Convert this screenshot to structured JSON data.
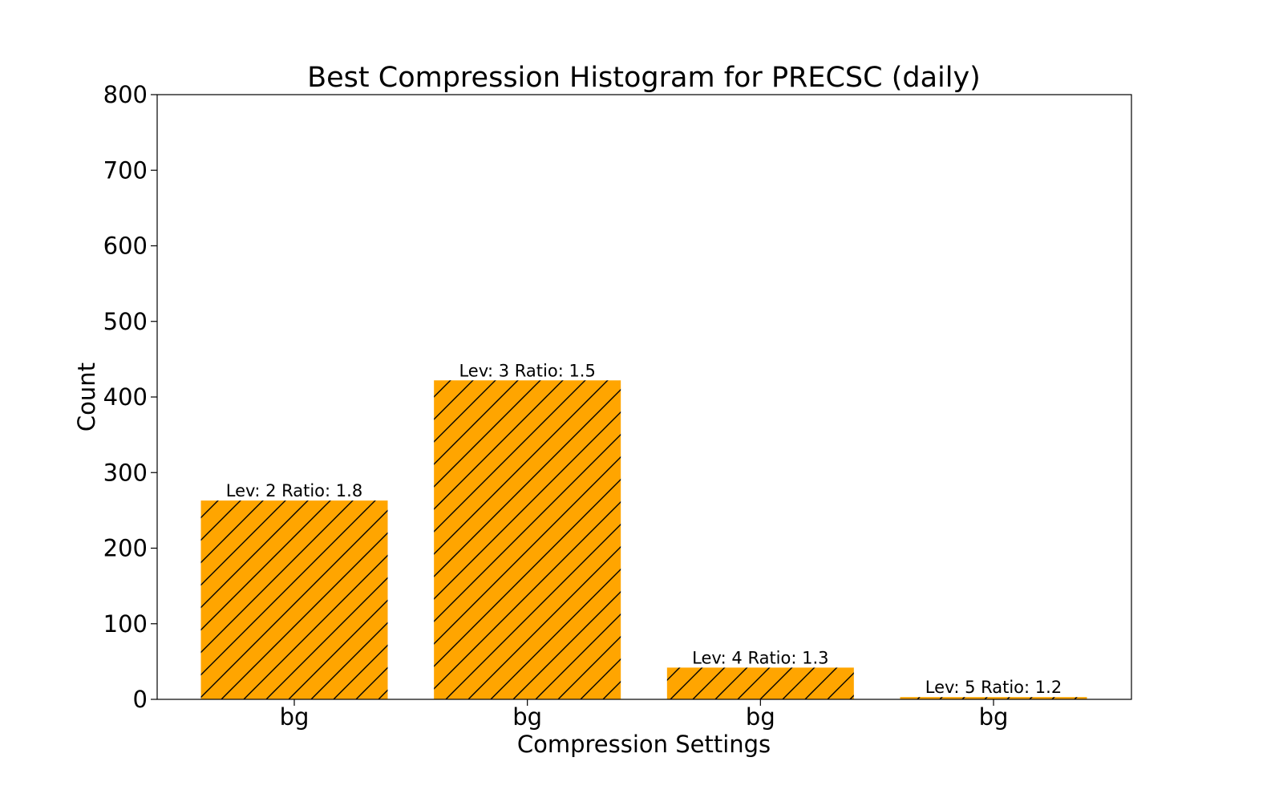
{
  "chart_data": {
    "type": "bar",
    "title": "Best Compression Histogram for PRECSC (daily)",
    "xlabel": "Compression Settings",
    "ylabel": "Count",
    "ylim": [
      0,
      800
    ],
    "yticks": [
      "0",
      "100",
      "200",
      "300",
      "400",
      "500",
      "600",
      "700",
      "800"
    ],
    "categories": [
      "bg",
      "bg",
      "bg",
      "bg"
    ],
    "values": [
      263,
      422,
      42,
      3
    ],
    "bar_labels": [
      "Lev: 2 Ratio: 1.8",
      "Lev: 3 Ratio: 1.5",
      "Lev: 4 Ratio: 1.3",
      "Lev: 5 Ratio: 1.2"
    ],
    "bar_color": "#ffa500",
    "hatch": "diagonal",
    "grid": false,
    "legend": "none"
  }
}
